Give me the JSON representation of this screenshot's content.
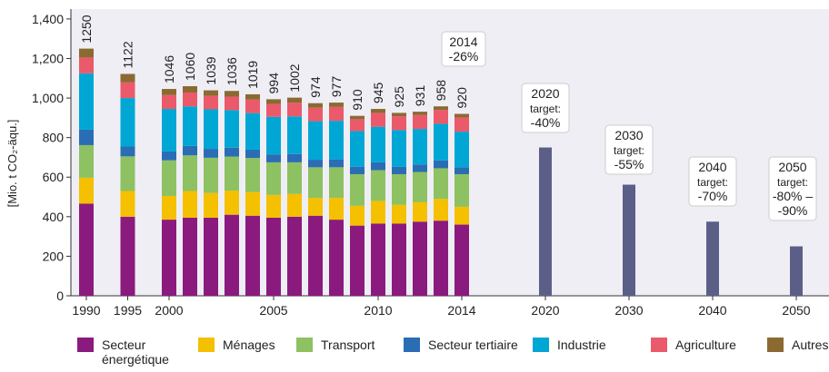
{
  "chart_data": {
    "type": "bar",
    "y_label": "[Mio. t CO₂-äqu.]",
    "categories": [
      "1990",
      "1995",
      "2000",
      null,
      null,
      null,
      null,
      "2005",
      null,
      null,
      null,
      null,
      "2010",
      null,
      null,
      null,
      "2014",
      "2020",
      "2030",
      "2040",
      "2050"
    ],
    "ylim": [
      0,
      1450
    ],
    "yticks": [
      0,
      200,
      400,
      600,
      800,
      {
        "value": 1000,
        "label": "1,000"
      },
      {
        "value": 1200,
        "label": "1,200"
      },
      {
        "value": 1400,
        "label": "1,400"
      }
    ],
    "series": [
      {
        "name": "Secteur énergétique",
        "color": "#8b1a7e",
        "values": [
          466,
          400,
          385,
          395,
          395,
          410,
          405,
          395,
          400,
          405,
          385,
          355,
          365,
          365,
          375,
          380,
          360,
          null,
          null,
          null,
          null
        ]
      },
      {
        "name": "Ménages",
        "color": "#f4c000",
        "values": [
          131,
          130,
          120,
          135,
          125,
          122,
          120,
          115,
          115,
          90,
          110,
          100,
          115,
          95,
          98,
          110,
          90,
          null,
          null,
          null,
          null
        ]
      },
      {
        "name": "Transport",
        "color": "#8dc162",
        "values": [
          165,
          175,
          180,
          180,
          178,
          172,
          172,
          165,
          160,
          155,
          155,
          160,
          155,
          155,
          153,
          155,
          165,
          null,
          null,
          null,
          null
        ]
      },
      {
        "name": "Secteur tertiaire",
        "color": "#2a6db5",
        "values": [
          78,
          50,
          45,
          48,
          45,
          45,
          42,
          40,
          42,
          38,
          40,
          38,
          40,
          38,
          38,
          40,
          35,
          null,
          null,
          null,
          null
        ]
      },
      {
        "name": "Industrie",
        "color": "#00a7d4",
        "values": [
          285,
          245,
          215,
          200,
          200,
          190,
          185,
          190,
          190,
          195,
          195,
          180,
          180,
          185,
          180,
          185,
          180,
          null,
          null,
          null,
          null
        ]
      },
      {
        "name": "Agriculture",
        "color": "#eb5a6a",
        "values": [
          80,
          80,
          70,
          70,
          68,
          68,
          68,
          65,
          70,
          68,
          70,
          60,
          70,
          70,
          70,
          70,
          72,
          null,
          null,
          null,
          null
        ]
      },
      {
        "name": "Autres",
        "color": "#8b6a32",
        "values": [
          45,
          42,
          31,
          32,
          28,
          29,
          27,
          24,
          25,
          23,
          22,
          17,
          20,
          17,
          17,
          18,
          18,
          null,
          null,
          null,
          null
        ]
      }
    ],
    "totals": [
      1250,
      1122,
      1046,
      1060,
      1039,
      1036,
      1019,
      994,
      1002,
      974,
      977,
      910,
      945,
      925,
      931,
      958,
      920,
      null,
      null,
      null,
      null
    ],
    "targets": {
      "color": "#5b5f88",
      "values": [
        null,
        null,
        null,
        null,
        null,
        null,
        null,
        null,
        null,
        null,
        null,
        null,
        null,
        null,
        null,
        null,
        null,
        750,
        562,
        375,
        250
      ]
    },
    "annotations": [
      {
        "lines": [
          "2014",
          "-26%"
        ]
      },
      {
        "lines": [
          "2020",
          "target:",
          "-40%"
        ]
      },
      {
        "lines": [
          "2030",
          "target:",
          "-55%"
        ]
      },
      {
        "lines": [
          "2040",
          "target:",
          "-70%"
        ]
      },
      {
        "lines": [
          "2050",
          "target:",
          "-80% –",
          "-90%"
        ]
      }
    ]
  }
}
